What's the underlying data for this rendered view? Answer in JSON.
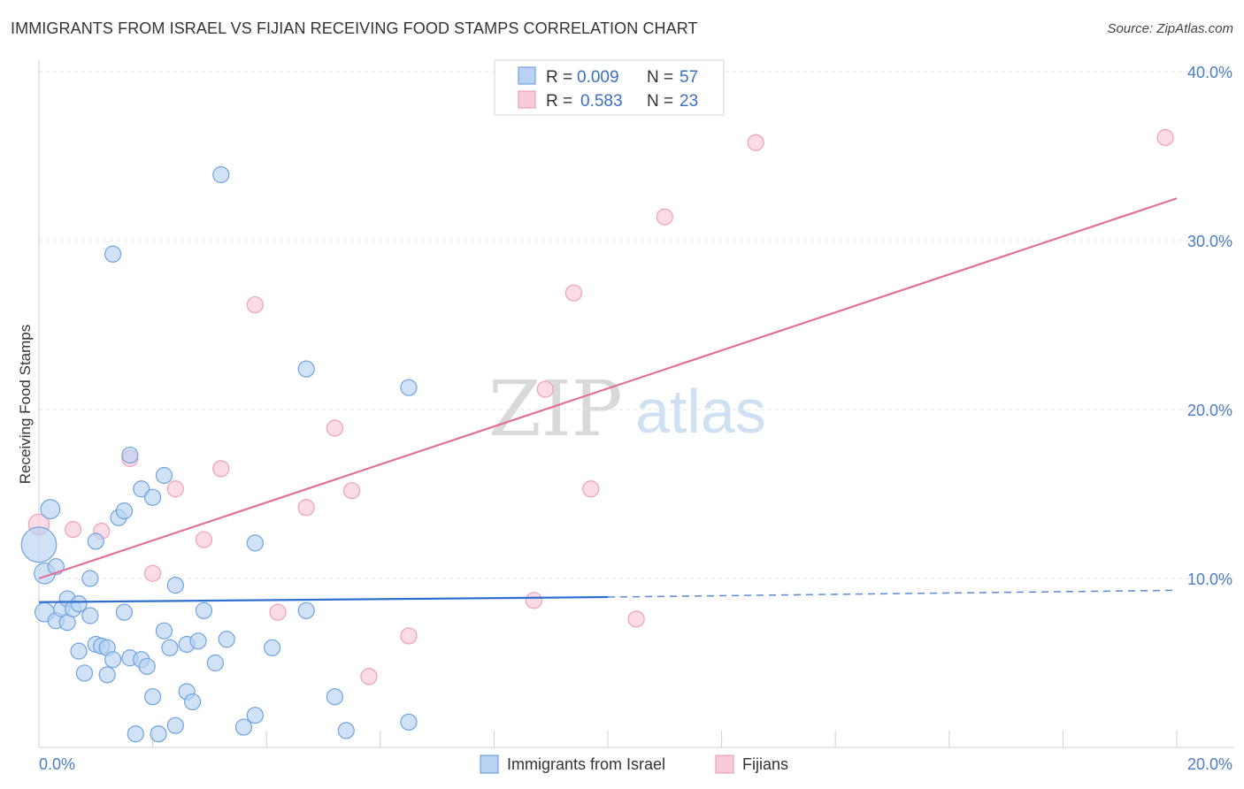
{
  "header": {
    "title": "IMMIGRANTS FROM ISRAEL VS FIJIAN RECEIVING FOOD STAMPS CORRELATION CHART",
    "source": "Source: ZipAtlas.com"
  },
  "watermark": {
    "part1": "ZIP",
    "part2": "atlas"
  },
  "colors": {
    "blue": "#6fa3e0",
    "blue_fill": "#b9d2f3",
    "blue_line": "#2f6fd0",
    "pink": "#f19fb8",
    "pink_fill": "#f9cad8",
    "pink_line": "#e2719a"
  },
  "legend": {
    "rows": [
      {
        "r_label": "R =",
        "r_value": "0.009",
        "n_label": "N =",
        "n_value": "57"
      },
      {
        "r_label": "R =",
        "r_value": "0.583",
        "n_label": "N =",
        "n_value": "23"
      }
    ]
  },
  "bottom_legend": {
    "israel": "Immigrants from Israel",
    "fijians": "Fijians"
  },
  "chart_data": {
    "type": "scatter",
    "title": "IMMIGRANTS FROM ISRAEL VS FIJIAN RECEIVING FOOD STAMPS CORRELATION CHART",
    "xlabel": "",
    "ylabel": "Receiving Food Stamps",
    "xlim": [
      0,
      20
    ],
    "ylim": [
      0,
      40
    ],
    "x_tick_labels": [
      "0.0%",
      "20.0%"
    ],
    "y_ticks": [
      10,
      20,
      30,
      40
    ],
    "y_tick_labels": [
      "10.0%",
      "20.0%",
      "30.0%",
      "40.0%"
    ],
    "grid": true,
    "series": [
      {
        "name": "Immigrants from Israel",
        "R": 0.009,
        "N": 57,
        "trend": {
          "x0": 0,
          "y0": 8.6,
          "x1": 10,
          "y1": 8.9,
          "dashed_to_x": 20,
          "dashed_to_y": 9.3
        },
        "points": [
          {
            "x": 0.0,
            "y": 12.0,
            "s": 2.2
          },
          {
            "x": 0.1,
            "y": 10.3,
            "s": 1.3
          },
          {
            "x": 0.2,
            "y": 14.1,
            "s": 1.2
          },
          {
            "x": 0.1,
            "y": 8.0,
            "s": 1.2
          },
          {
            "x": 0.3,
            "y": 10.7,
            "s": 1.0
          },
          {
            "x": 0.3,
            "y": 7.5,
            "s": 1.0
          },
          {
            "x": 0.4,
            "y": 8.2,
            "s": 1.0
          },
          {
            "x": 0.5,
            "y": 7.4,
            "s": 1.0
          },
          {
            "x": 0.5,
            "y": 8.8,
            "s": 1.0
          },
          {
            "x": 0.6,
            "y": 8.2,
            "s": 1.0
          },
          {
            "x": 0.7,
            "y": 8.5,
            "s": 1.0
          },
          {
            "x": 0.7,
            "y": 5.7,
            "s": 1.0
          },
          {
            "x": 0.8,
            "y": 4.4,
            "s": 1.0
          },
          {
            "x": 0.9,
            "y": 7.8,
            "s": 1.0
          },
          {
            "x": 0.9,
            "y": 10.0,
            "s": 1.0
          },
          {
            "x": 1.0,
            "y": 12.2,
            "s": 1.0
          },
          {
            "x": 1.0,
            "y": 6.1,
            "s": 1.0
          },
          {
            "x": 1.2,
            "y": 4.3,
            "s": 1.0
          },
          {
            "x": 1.1,
            "y": 6.0,
            "s": 1.0
          },
          {
            "x": 1.2,
            "y": 5.9,
            "s": 1.0
          },
          {
            "x": 1.3,
            "y": 5.2,
            "s": 1.0
          },
          {
            "x": 1.4,
            "y": 13.6,
            "s": 1.0
          },
          {
            "x": 1.5,
            "y": 14.0,
            "s": 1.0
          },
          {
            "x": 1.5,
            "y": 8.0,
            "s": 1.0
          },
          {
            "x": 1.6,
            "y": 17.3,
            "s": 1.0
          },
          {
            "x": 1.6,
            "y": 5.3,
            "s": 1.0
          },
          {
            "x": 1.7,
            "y": 0.8,
            "s": 1.0
          },
          {
            "x": 1.8,
            "y": 5.2,
            "s": 1.0
          },
          {
            "x": 1.8,
            "y": 15.3,
            "s": 1.0
          },
          {
            "x": 1.9,
            "y": 4.8,
            "s": 1.0
          },
          {
            "x": 2.0,
            "y": 14.8,
            "s": 1.0
          },
          {
            "x": 2.0,
            "y": 3.0,
            "s": 1.0
          },
          {
            "x": 2.1,
            "y": 0.8,
            "s": 1.0
          },
          {
            "x": 2.2,
            "y": 16.1,
            "s": 1.0
          },
          {
            "x": 2.2,
            "y": 6.9,
            "s": 1.0
          },
          {
            "x": 2.3,
            "y": 5.9,
            "s": 1.0
          },
          {
            "x": 2.4,
            "y": 9.6,
            "s": 1.0
          },
          {
            "x": 2.4,
            "y": 1.3,
            "s": 1.0
          },
          {
            "x": 2.6,
            "y": 3.3,
            "s": 1.0
          },
          {
            "x": 2.7,
            "y": 2.7,
            "s": 1.0
          },
          {
            "x": 2.6,
            "y": 6.1,
            "s": 1.0
          },
          {
            "x": 2.8,
            "y": 6.3,
            "s": 1.0
          },
          {
            "x": 2.9,
            "y": 8.1,
            "s": 1.0
          },
          {
            "x": 3.1,
            "y": 5.0,
            "s": 1.0
          },
          {
            "x": 3.2,
            "y": 33.9,
            "s": 1.0
          },
          {
            "x": 3.3,
            "y": 6.4,
            "s": 1.0
          },
          {
            "x": 3.6,
            "y": 1.2,
            "s": 1.0
          },
          {
            "x": 3.8,
            "y": 12.1,
            "s": 1.0
          },
          {
            "x": 3.8,
            "y": 1.9,
            "s": 1.0
          },
          {
            "x": 4.1,
            "y": 5.9,
            "s": 1.0
          },
          {
            "x": 1.3,
            "y": 29.2,
            "s": 1.0
          },
          {
            "x": 4.7,
            "y": 22.4,
            "s": 1.0
          },
          {
            "x": 4.7,
            "y": 8.1,
            "s": 1.0
          },
          {
            "x": 5.2,
            "y": 3.0,
            "s": 1.0
          },
          {
            "x": 5.4,
            "y": 1.0,
            "s": 1.0
          },
          {
            "x": 6.5,
            "y": 21.3,
            "s": 1.0
          },
          {
            "x": 6.5,
            "y": 1.5,
            "s": 1.0
          }
        ]
      },
      {
        "name": "Fijians",
        "R": 0.583,
        "N": 23,
        "trend": {
          "x0": 0,
          "y0": 10.0,
          "x1": 20,
          "y1": 32.5
        },
        "points": [
          {
            "x": 0.0,
            "y": 13.2,
            "s": 1.3
          },
          {
            "x": 0.6,
            "y": 12.9,
            "s": 1.0
          },
          {
            "x": 1.1,
            "y": 12.8,
            "s": 1.0
          },
          {
            "x": 1.6,
            "y": 17.1,
            "s": 1.0
          },
          {
            "x": 2.0,
            "y": 10.3,
            "s": 1.0
          },
          {
            "x": 2.4,
            "y": 15.3,
            "s": 1.0
          },
          {
            "x": 2.9,
            "y": 12.3,
            "s": 1.0
          },
          {
            "x": 3.2,
            "y": 16.5,
            "s": 1.0
          },
          {
            "x": 3.8,
            "y": 26.2,
            "s": 1.0
          },
          {
            "x": 4.2,
            "y": 8.0,
            "s": 1.0
          },
          {
            "x": 4.7,
            "y": 14.2,
            "s": 1.0
          },
          {
            "x": 5.2,
            "y": 18.9,
            "s": 1.0
          },
          {
            "x": 5.5,
            "y": 15.2,
            "s": 1.0
          },
          {
            "x": 5.8,
            "y": 4.2,
            "s": 1.0
          },
          {
            "x": 6.5,
            "y": 6.6,
            "s": 1.0
          },
          {
            "x": 8.7,
            "y": 8.7,
            "s": 1.0
          },
          {
            "x": 8.9,
            "y": 21.2,
            "s": 1.0
          },
          {
            "x": 9.4,
            "y": 26.9,
            "s": 1.0
          },
          {
            "x": 9.7,
            "y": 15.3,
            "s": 1.0
          },
          {
            "x": 10.5,
            "y": 7.6,
            "s": 1.0
          },
          {
            "x": 11.0,
            "y": 31.4,
            "s": 1.0
          },
          {
            "x": 12.6,
            "y": 35.8,
            "s": 1.0
          },
          {
            "x": 19.8,
            "y": 36.1,
            "s": 1.0
          }
        ]
      }
    ]
  }
}
